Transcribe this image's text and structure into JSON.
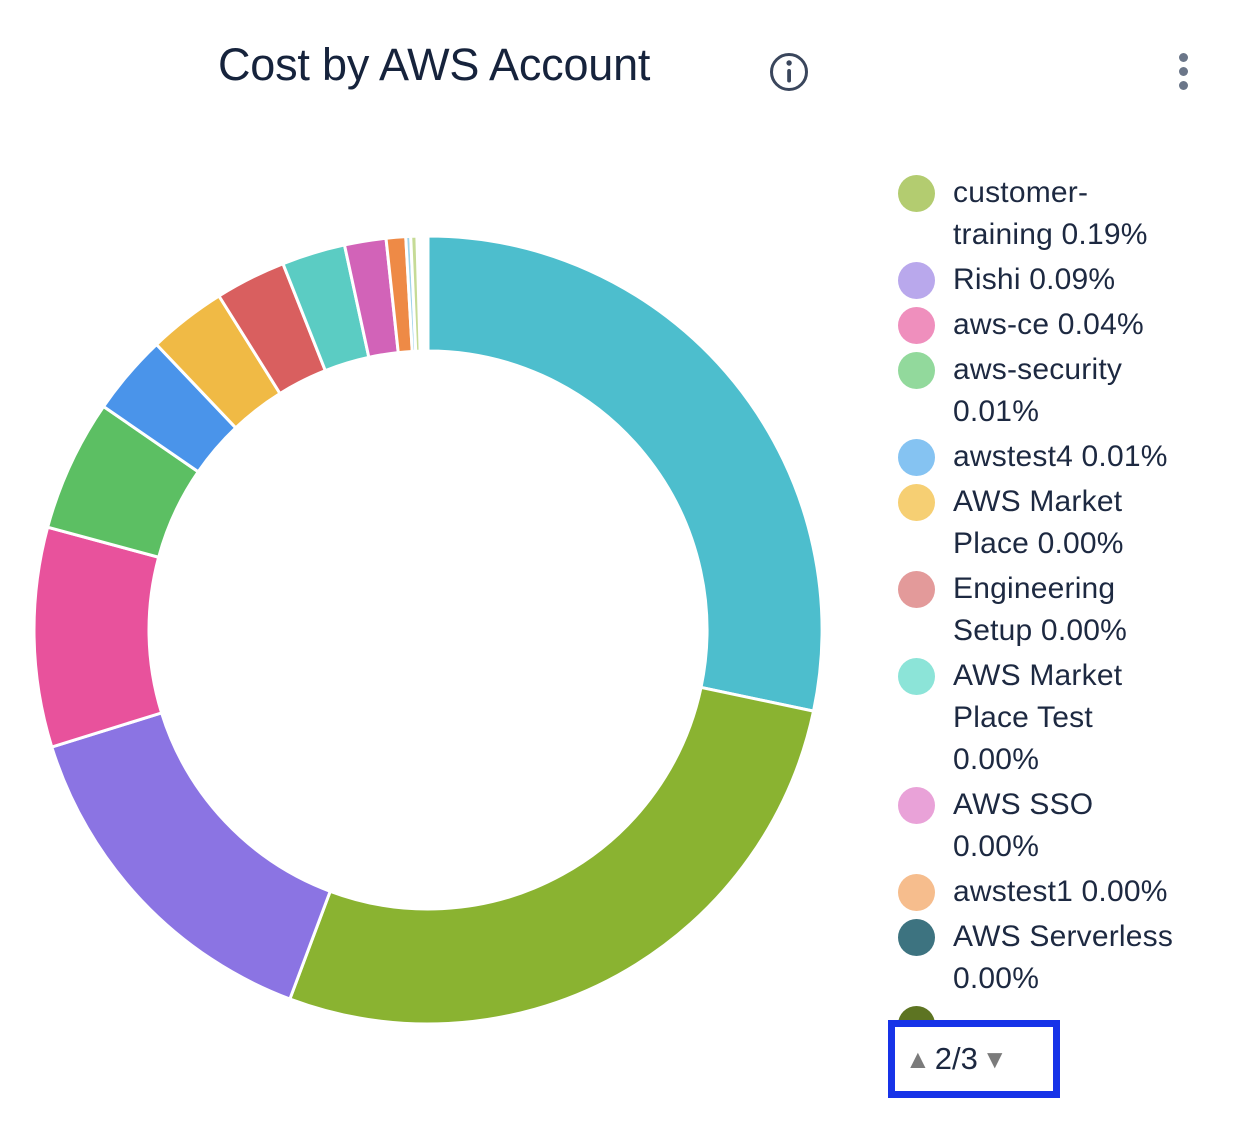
{
  "header": {
    "title": "Cost by AWS Account",
    "info_icon": "circle-info",
    "menu_icon": "kebab-vertical-dots"
  },
  "chart_data": {
    "type": "donut",
    "title": "Cost by AWS Account",
    "legend_position": "right",
    "legend_page": "2/3",
    "segments": [
      {
        "color": "#4dbecd",
        "percent": 28.3
      },
      {
        "color": "#8ab331",
        "percent": 27.4
      },
      {
        "color": "#8b74e3",
        "percent": 14.5
      },
      {
        "color": "#e8529c",
        "percent": 9.0
      },
      {
        "color": "#5cbf63",
        "percent": 5.4
      },
      {
        "color": "#4a94ea",
        "percent": 3.3
      },
      {
        "color": "#f0ba45",
        "percent": 3.2
      },
      {
        "color": "#d95f5f",
        "percent": 2.9
      },
      {
        "color": "#5bccc3",
        "percent": 2.6
      },
      {
        "color": "#d263b8",
        "percent": 1.7
      },
      {
        "color": "#ee8a46",
        "percent": 0.8
      },
      {
        "color": "#a0d4ea",
        "percent": 0.2
      },
      {
        "color": "#c6db96",
        "percent": 0.25
      }
    ],
    "legend_entries": [
      {
        "name": "customer-training",
        "percent": "0.19%",
        "label": "customer-training 0.19%",
        "color": "#b3cc70",
        "lines": [
          "customer-",
          "training 0.19%"
        ]
      },
      {
        "name": "Rishi",
        "percent": "0.09%",
        "label": "Rishi 0.09%",
        "color": "#b9a8ec",
        "lines": [
          "Rishi 0.09%"
        ]
      },
      {
        "name": "aws-ce",
        "percent": "0.04%",
        "label": "aws-ce 0.04%",
        "color": "#ef8fbd",
        "lines": [
          "aws-ce 0.04%"
        ]
      },
      {
        "name": "aws-security",
        "percent": "0.01%",
        "label": "aws-security 0.01%",
        "color": "#92d99c",
        "lines": [
          "aws-security",
          "0.01%"
        ]
      },
      {
        "name": "awstest4",
        "percent": "0.01%",
        "label": "awstest4 0.01%",
        "color": "#85c3f2",
        "lines": [
          "awstest4 0.01%"
        ]
      },
      {
        "name": "AWS Market Place",
        "percent": "0.00%",
        "label": "AWS Market Place 0.00%",
        "color": "#f6cf73",
        "lines": [
          "AWS Market",
          "Place 0.00%"
        ]
      },
      {
        "name": "Engineering Setup",
        "percent": "0.00%",
        "label": "Engineering Setup 0.00%",
        "color": "#e39a9a",
        "lines": [
          "Engineering",
          "Setup 0.00%"
        ]
      },
      {
        "name": "AWS Market Place Test",
        "percent": "0.00%",
        "label": "AWS Market Place Test 0.00%",
        "color": "#8ce4d8",
        "lines": [
          "AWS Market",
          "Place Test",
          "0.00%"
        ]
      },
      {
        "name": "AWS SSO",
        "percent": "0.00%",
        "label": "AWS SSO 0.00%",
        "color": "#e9a2d8",
        "lines": [
          "AWS SSO",
          "0.00%"
        ]
      },
      {
        "name": "awstest1",
        "percent": "0.00%",
        "label": "awstest1 0.00%",
        "color": "#f6bd8d",
        "lines": [
          "awstest1 0.00%"
        ]
      },
      {
        "name": "AWS Serverless",
        "percent": "0.00%",
        "label": "AWS Serverless 0.00%",
        "color": "#3d7380",
        "lines": [
          "AWS Serverless",
          "0.00%"
        ]
      }
    ],
    "legend_partial_entry": {
      "color": "#5d7422"
    }
  },
  "pagination": {
    "display": "2/3",
    "current_page": 2,
    "total_pages": 3,
    "up_glyph": "▲",
    "down_glyph": "▼",
    "highlight_border_color": "#1733e8"
  }
}
